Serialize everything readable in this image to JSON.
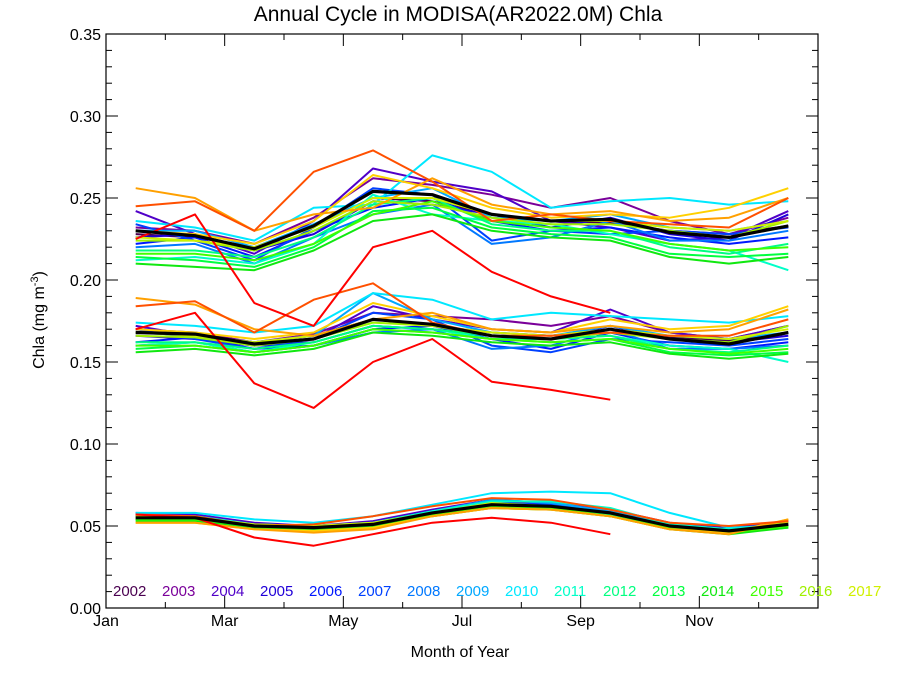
{
  "chart_data": {
    "type": "line",
    "title": "Annual Cycle in MODISA(AR2022.0M) Chla",
    "xlabel": "Month of Year",
    "ylabel": "Chla (mg m",
    "ylabel_sup": "-3",
    "ylabel_close": ")",
    "xlim": [
      1,
      13
    ],
    "ylim": [
      0.0,
      0.35
    ],
    "x_ticks": [
      1,
      3,
      5,
      7,
      9,
      11
    ],
    "x_tick_labels": [
      "Jan",
      "Mar",
      "May",
      "Jul",
      "Sep",
      "Nov"
    ],
    "y_ticks": [
      0.0,
      0.05,
      0.1,
      0.15,
      0.2,
      0.25,
      0.3,
      0.35
    ],
    "y_tick_labels": [
      "0.00",
      "0.05",
      "0.10",
      "0.15",
      "0.20",
      "0.25",
      "0.30",
      "0.35"
    ],
    "grid": false,
    "legend": "bottom-row",
    "x": [
      1.5,
      2.5,
      3.5,
      4.5,
      5.5,
      6.5,
      7.5,
      8.5,
      9.5,
      10.5,
      11.5,
      12.5
    ],
    "groups": [
      "upper",
      "middle",
      "lower"
    ],
    "series": [
      {
        "name": "2002",
        "color": "#4a0050",
        "upper": [
          0.228,
          0.226,
          0.22,
          0.233,
          0.25,
          0.248,
          0.24,
          0.236,
          0.235,
          0.23,
          0.228,
          0.233
        ],
        "middle": [
          0.168,
          0.167,
          0.162,
          0.166,
          0.176,
          0.172,
          0.168,
          0.166,
          0.17,
          0.165,
          0.163,
          0.168
        ],
        "lower": [
          0.056,
          0.055,
          0.05,
          0.049,
          0.051,
          0.058,
          0.064,
          0.062,
          0.058,
          0.05,
          0.047,
          0.051
        ]
      },
      {
        "name": "2003",
        "color": "#7a009a",
        "upper": [
          0.232,
          0.23,
          0.222,
          0.238,
          0.262,
          0.258,
          0.252,
          0.244,
          0.25,
          0.236,
          0.228,
          0.238
        ],
        "middle": [
          0.17,
          0.168,
          0.162,
          0.167,
          0.18,
          0.178,
          0.176,
          0.172,
          0.178,
          0.168,
          0.164,
          0.172
        ],
        "lower": [
          0.057,
          0.056,
          0.051,
          0.05,
          0.052,
          0.059,
          0.065,
          0.063,
          0.059,
          0.051,
          0.048,
          0.052
        ]
      },
      {
        "name": "2004",
        "color": "#5000c8",
        "upper": [
          0.242,
          0.228,
          0.216,
          0.236,
          0.268,
          0.26,
          0.254,
          0.236,
          0.232,
          0.224,
          0.226,
          0.242
        ],
        "middle": [
          0.172,
          0.166,
          0.16,
          0.164,
          0.184,
          0.176,
          0.17,
          0.168,
          0.182,
          0.168,
          0.164,
          0.172
        ],
        "lower": [
          0.058,
          0.057,
          0.052,
          0.05,
          0.053,
          0.06,
          0.066,
          0.064,
          0.06,
          0.052,
          0.049,
          0.053
        ]
      },
      {
        "name": "2005",
        "color": "#2000d8",
        "upper": [
          0.226,
          0.228,
          0.218,
          0.228,
          0.248,
          0.246,
          0.24,
          0.232,
          0.238,
          0.228,
          0.224,
          0.24
        ],
        "middle": [
          0.166,
          0.164,
          0.16,
          0.162,
          0.172,
          0.17,
          0.166,
          0.164,
          0.172,
          0.164,
          0.162,
          0.166
        ],
        "lower": [
          0.055,
          0.055,
          0.05,
          0.049,
          0.051,
          0.058,
          0.063,
          0.062,
          0.058,
          0.05,
          0.047,
          0.051
        ]
      },
      {
        "name": "2006",
        "color": "#0018ff",
        "upper": [
          0.222,
          0.226,
          0.214,
          0.23,
          0.244,
          0.25,
          0.236,
          0.23,
          0.232,
          0.226,
          0.222,
          0.226
        ],
        "middle": [
          0.162,
          0.165,
          0.158,
          0.16,
          0.17,
          0.172,
          0.164,
          0.158,
          0.168,
          0.16,
          0.158,
          0.162
        ],
        "lower": [
          0.055,
          0.055,
          0.05,
          0.049,
          0.051,
          0.058,
          0.063,
          0.062,
          0.057,
          0.05,
          0.047,
          0.051
        ]
      },
      {
        "name": "2007",
        "color": "#0040ff",
        "upper": [
          0.234,
          0.224,
          0.212,
          0.232,
          0.256,
          0.252,
          0.224,
          0.23,
          0.228,
          0.23,
          0.228,
          0.232
        ],
        "middle": [
          0.17,
          0.164,
          0.158,
          0.164,
          0.18,
          0.176,
          0.16,
          0.156,
          0.164,
          0.162,
          0.16,
          0.164
        ],
        "lower": [
          0.056,
          0.056,
          0.051,
          0.05,
          0.052,
          0.059,
          0.064,
          0.063,
          0.058,
          0.051,
          0.048,
          0.052
        ]
      },
      {
        "name": "2008",
        "color": "#0078ff",
        "upper": [
          0.22,
          0.222,
          0.21,
          0.226,
          0.24,
          0.246,
          0.222,
          0.226,
          0.236,
          0.224,
          0.224,
          0.23
        ],
        "middle": [
          0.16,
          0.162,
          0.156,
          0.16,
          0.168,
          0.17,
          0.158,
          0.16,
          0.17,
          0.158,
          0.158,
          0.16
        ],
        "lower": [
          0.054,
          0.055,
          0.05,
          0.049,
          0.051,
          0.058,
          0.063,
          0.062,
          0.057,
          0.05,
          0.047,
          0.051
        ]
      },
      {
        "name": "2009",
        "color": "#00a8ff",
        "upper": [
          0.23,
          0.23,
          0.22,
          0.234,
          0.25,
          0.256,
          0.238,
          0.236,
          0.24,
          0.232,
          0.23,
          0.236
        ],
        "middle": [
          0.168,
          0.166,
          0.162,
          0.166,
          0.192,
          0.176,
          0.168,
          0.166,
          0.172,
          0.166,
          0.164,
          0.168
        ],
        "lower": [
          0.056,
          0.056,
          0.051,
          0.05,
          0.052,
          0.059,
          0.066,
          0.064,
          0.059,
          0.051,
          0.048,
          0.052
        ]
      },
      {
        "name": "2010",
        "color": "#00e8ff",
        "upper": [
          0.236,
          0.232,
          0.224,
          0.244,
          0.246,
          0.276,
          0.266,
          0.244,
          0.248,
          0.25,
          0.246,
          0.248
        ],
        "middle": [
          0.174,
          0.172,
          0.168,
          0.172,
          0.192,
          0.188,
          0.176,
          0.18,
          0.178,
          0.176,
          0.174,
          0.178
        ],
        "lower": [
          0.058,
          0.058,
          0.054,
          0.052,
          0.056,
          0.063,
          0.07,
          0.071,
          0.07,
          0.058,
          0.049,
          0.05
        ]
      },
      {
        "name": "2011",
        "color": "#00ffc8",
        "upper": [
          0.212,
          0.214,
          0.21,
          0.222,
          0.252,
          0.24,
          0.236,
          0.234,
          0.228,
          0.222,
          0.218,
          0.206
        ],
        "middle": [
          0.16,
          0.162,
          0.156,
          0.162,
          0.172,
          0.17,
          0.164,
          0.164,
          0.166,
          0.16,
          0.158,
          0.15
        ],
        "lower": [
          0.056,
          0.056,
          0.051,
          0.05,
          0.052,
          0.059,
          0.065,
          0.065,
          0.061,
          0.051,
          0.048,
          0.051
        ]
      },
      {
        "name": "2012",
        "color": "#00ff80",
        "upper": [
          0.218,
          0.218,
          0.214,
          0.226,
          0.246,
          0.25,
          0.234,
          0.23,
          0.23,
          0.22,
          0.216,
          0.222
        ],
        "middle": [
          0.162,
          0.162,
          0.158,
          0.162,
          0.172,
          0.17,
          0.166,
          0.164,
          0.166,
          0.158,
          0.156,
          0.16
        ],
        "lower": [
          0.054,
          0.054,
          0.05,
          0.049,
          0.051,
          0.057,
          0.062,
          0.061,
          0.057,
          0.049,
          0.046,
          0.05
        ]
      },
      {
        "name": "2013",
        "color": "#00ff40",
        "upper": [
          0.214,
          0.212,
          0.208,
          0.22,
          0.242,
          0.244,
          0.232,
          0.228,
          0.226,
          0.216,
          0.214,
          0.216
        ],
        "middle": [
          0.158,
          0.16,
          0.156,
          0.16,
          0.17,
          0.168,
          0.164,
          0.162,
          0.164,
          0.156,
          0.154,
          0.156
        ],
        "lower": [
          0.054,
          0.054,
          0.05,
          0.049,
          0.051,
          0.057,
          0.062,
          0.061,
          0.056,
          0.049,
          0.046,
          0.049
        ]
      },
      {
        "name": "2014",
        "color": "#10e810",
        "upper": [
          0.21,
          0.208,
          0.206,
          0.218,
          0.236,
          0.24,
          0.23,
          0.226,
          0.224,
          0.214,
          0.21,
          0.214
        ],
        "middle": [
          0.156,
          0.158,
          0.154,
          0.158,
          0.168,
          0.166,
          0.162,
          0.16,
          0.162,
          0.155,
          0.152,
          0.155
        ],
        "lower": [
          0.053,
          0.053,
          0.049,
          0.048,
          0.05,
          0.056,
          0.061,
          0.06,
          0.056,
          0.048,
          0.045,
          0.049
        ]
      },
      {
        "name": "2015",
        "color": "#40ff00",
        "upper": [
          0.216,
          0.216,
          0.212,
          0.222,
          0.24,
          0.248,
          0.236,
          0.232,
          0.23,
          0.222,
          0.218,
          0.22
        ],
        "middle": [
          0.16,
          0.16,
          0.156,
          0.16,
          0.17,
          0.168,
          0.164,
          0.162,
          0.164,
          0.158,
          0.155,
          0.158
        ],
        "lower": [
          0.054,
          0.054,
          0.05,
          0.049,
          0.051,
          0.057,
          0.062,
          0.061,
          0.056,
          0.049,
          0.046,
          0.05
        ]
      },
      {
        "name": "2016",
        "color": "#a0f000",
        "upper": [
          0.224,
          0.224,
          0.218,
          0.23,
          0.248,
          0.246,
          0.238,
          0.234,
          0.234,
          0.23,
          0.226,
          0.236
        ],
        "middle": [
          0.166,
          0.165,
          0.16,
          0.164,
          0.174,
          0.172,
          0.166,
          0.164,
          0.168,
          0.164,
          0.162,
          0.172
        ],
        "lower": [
          0.055,
          0.055,
          0.05,
          0.049,
          0.051,
          0.058,
          0.063,
          0.062,
          0.058,
          0.05,
          0.047,
          0.052
        ]
      },
      {
        "name": "2017",
        "color": "#d0f000",
        "upper": [
          0.226,
          0.224,
          0.22,
          0.232,
          0.25,
          0.25,
          0.24,
          0.236,
          0.236,
          0.232,
          0.23,
          0.236
        ],
        "middle": [
          0.168,
          0.166,
          0.162,
          0.166,
          0.176,
          0.172,
          0.168,
          0.166,
          0.17,
          0.166,
          0.164,
          0.17
        ],
        "lower": [
          0.056,
          0.055,
          0.051,
          0.05,
          0.052,
          0.058,
          0.064,
          0.062,
          0.058,
          0.05,
          0.047,
          0.052
        ]
      },
      {
        "name": "",
        "color": "#ffd000",
        "upper": [
          0.23,
          0.228,
          0.222,
          0.236,
          0.264,
          0.256,
          0.244,
          0.238,
          0.24,
          0.238,
          0.244,
          0.256
        ],
        "middle": [
          0.17,
          0.168,
          0.164,
          0.168,
          0.186,
          0.178,
          0.17,
          0.168,
          0.176,
          0.17,
          0.172,
          0.184
        ],
        "lower": [
          0.052,
          0.052,
          0.048,
          0.047,
          0.049,
          0.056,
          0.061,
          0.06,
          0.056,
          0.048,
          0.046,
          0.054
        ]
      },
      {
        "name": "",
        "color": "#ffa000",
        "upper": [
          0.256,
          0.25,
          0.23,
          0.24,
          0.244,
          0.262,
          0.246,
          0.24,
          0.242,
          0.236,
          0.238,
          0.25
        ],
        "middle": [
          0.189,
          0.185,
          0.17,
          0.166,
          0.176,
          0.18,
          0.17,
          0.168,
          0.172,
          0.168,
          0.17,
          0.182
        ],
        "lower": [
          0.052,
          0.052,
          0.048,
          0.046,
          0.048,
          0.056,
          0.061,
          0.06,
          0.056,
          0.048,
          0.045,
          0.054
        ]
      },
      {
        "name": "",
        "color": "#ff5000",
        "upper": [
          0.245,
          0.248,
          0.23,
          0.266,
          0.279,
          0.26,
          0.236,
          0.24,
          0.236,
          0.234,
          0.232,
          0.25
        ],
        "middle": [
          0.184,
          0.187,
          0.168,
          0.188,
          0.198,
          0.174,
          0.166,
          0.166,
          0.168,
          0.166,
          0.166,
          0.176
        ],
        "lower": [
          0.057,
          0.056,
          0.05,
          0.051,
          0.056,
          0.062,
          0.067,
          0.066,
          0.06,
          0.052,
          0.05,
          0.053
        ]
      },
      {
        "name": "",
        "color": "#ff0000",
        "upper": [
          0.225,
          0.24,
          0.186,
          0.172,
          0.22,
          0.23,
          0.205,
          0.19,
          0.18
        ],
        "middle": [
          0.17,
          0.18,
          0.137,
          0.122,
          0.15,
          0.164,
          0.138,
          0.133,
          0.127
        ],
        "lower": [
          0.057,
          0.055,
          0.043,
          0.038,
          0.045,
          0.052,
          0.055,
          0.052,
          0.045
        ]
      }
    ],
    "mean": {
      "name": "",
      "color": "#000000",
      "upper": [
        0.23,
        0.227,
        0.219,
        0.233,
        0.254,
        0.252,
        0.24,
        0.236,
        0.237,
        0.229,
        0.226,
        0.233
      ],
      "middle": [
        0.168,
        0.167,
        0.161,
        0.164,
        0.176,
        0.173,
        0.166,
        0.164,
        0.17,
        0.164,
        0.161,
        0.168
      ],
      "lower": [
        0.055,
        0.055,
        0.05,
        0.049,
        0.051,
        0.058,
        0.063,
        0.062,
        0.058,
        0.05,
        0.047,
        0.051
      ]
    }
  }
}
